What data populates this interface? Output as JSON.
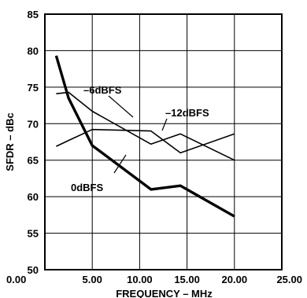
{
  "chart_data": {
    "type": "line",
    "xlabel": "FREQUENCY – MHz",
    "ylabel": "SFDR – dBc",
    "xlim": [
      0,
      25
    ],
    "ylim": [
      50,
      85
    ],
    "x_ticks": [
      0,
      5,
      10,
      15,
      20,
      25
    ],
    "y_ticks": [
      50,
      55,
      60,
      65,
      70,
      75,
      80,
      85
    ],
    "x_tick_labels": [
      "0.00",
      "5.00",
      "10.00",
      "15.00",
      "20.00",
      "25.00"
    ],
    "y_tick_labels": [
      "50",
      "55",
      "60",
      "65",
      "70",
      "75",
      "80",
      "85"
    ],
    "grid": true,
    "series": [
      {
        "name": "0dBFS",
        "x": [
          1.2,
          2.5,
          5.0,
          11.2,
          14.3,
          20.0
        ],
        "y": [
          79.3,
          73.5,
          67.0,
          61.0,
          61.5,
          57.3
        ]
      },
      {
        "name": "–6dBFS",
        "x": [
          1.2,
          2.5,
          5.0,
          11.2,
          14.3,
          20.0
        ],
        "y": [
          74.1,
          74.3,
          71.7,
          67.2,
          68.6,
          65.0
        ]
      },
      {
        "name": "–12dBFS",
        "x": [
          1.2,
          2.5,
          5.0,
          11.2,
          14.3,
          20.0
        ],
        "y": [
          66.9,
          67.7,
          69.2,
          69.0,
          66.0,
          68.6
        ]
      }
    ]
  }
}
